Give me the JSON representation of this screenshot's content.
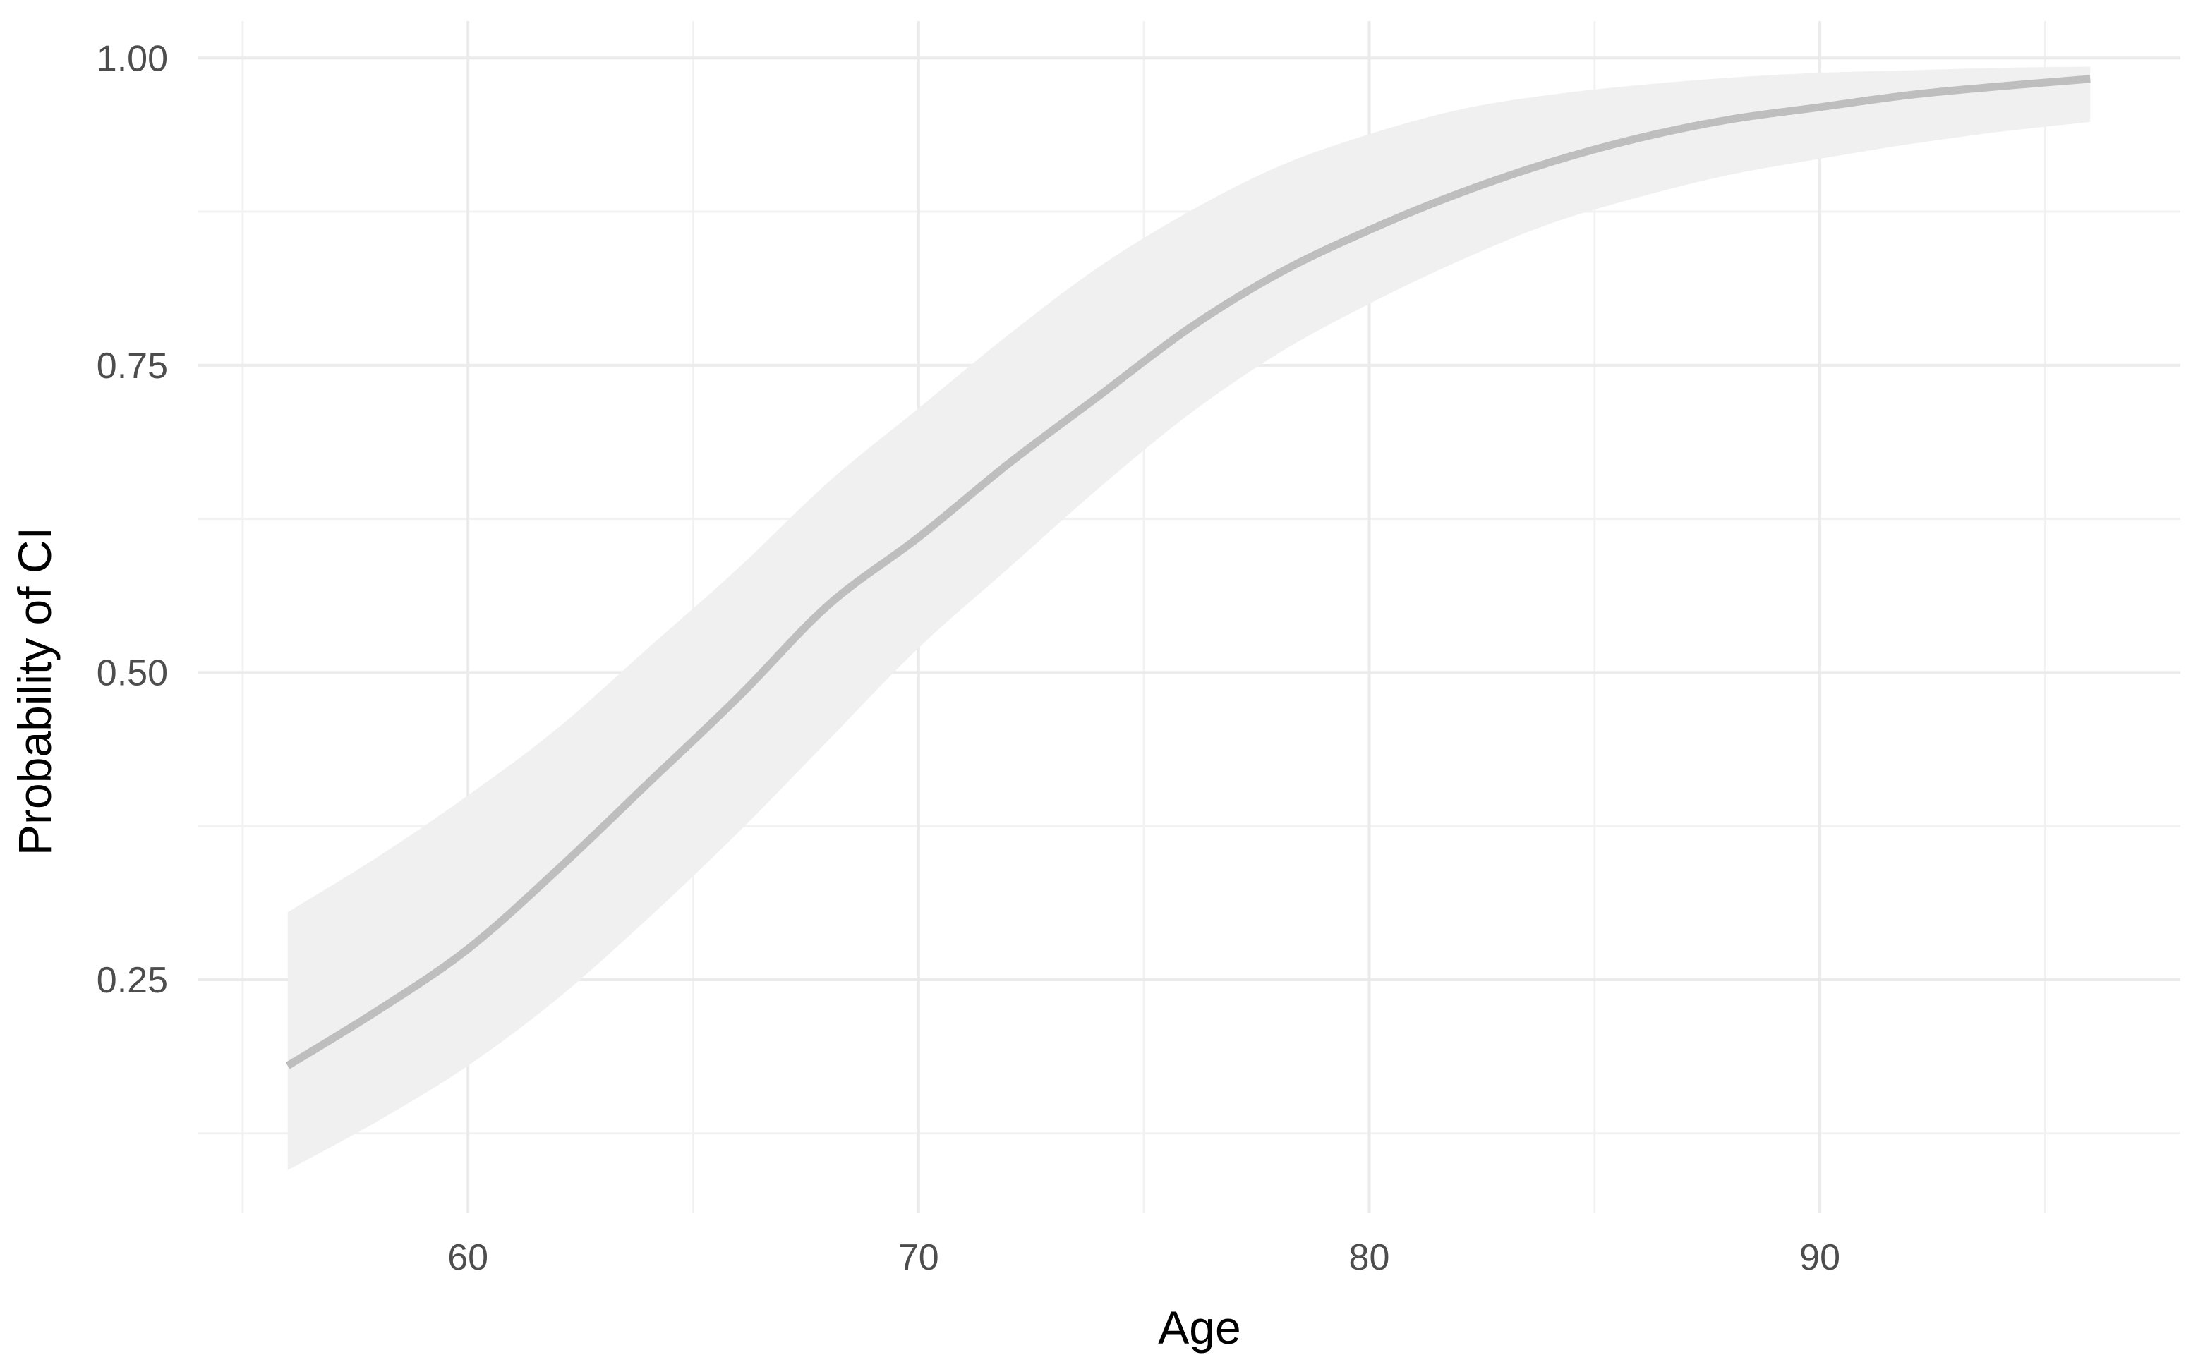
{
  "chart_data": {
    "type": "line",
    "title": "",
    "xlabel": "Age",
    "ylabel": "Probability of CI",
    "xlim": [
      54,
      98
    ],
    "ylim": [
      0.06,
      1.03
    ],
    "x_ticks": [
      60,
      70,
      80,
      90
    ],
    "x_tick_labels": [
      "60",
      "70",
      "80",
      "90"
    ],
    "y_ticks": [
      0.25,
      0.5,
      0.75,
      1.0
    ],
    "y_tick_labels": [
      "0.25",
      "0.50",
      "0.75",
      "1.00"
    ],
    "grid": true,
    "legend": "none",
    "series": [
      {
        "x": [
          56,
          58,
          60,
          62,
          64,
          66,
          68,
          70,
          72,
          74,
          76,
          78,
          80,
          82,
          84,
          86,
          88,
          90,
          92,
          94,
          96
        ],
        "y": [
          0.18,
          0.225,
          0.275,
          0.34,
          0.41,
          0.48,
          0.555,
          0.61,
          0.67,
          0.725,
          0.78,
          0.825,
          0.86,
          0.89,
          0.915,
          0.935,
          0.95,
          0.96,
          0.97,
          0.977,
          0.983
        ],
        "lower": [
          0.095,
          0.135,
          0.18,
          0.235,
          0.3,
          0.37,
          0.445,
          0.52,
          0.585,
          0.65,
          0.71,
          0.76,
          0.8,
          0.835,
          0.865,
          0.887,
          0.905,
          0.918,
          0.93,
          0.94,
          0.948
        ],
        "upper": [
          0.305,
          0.35,
          0.4,
          0.455,
          0.52,
          0.585,
          0.655,
          0.715,
          0.775,
          0.83,
          0.875,
          0.912,
          0.938,
          0.958,
          0.97,
          0.978,
          0.984,
          0.988,
          0.99,
          0.992,
          0.993
        ]
      }
    ],
    "colors": {
      "line": "#bebebe",
      "ribbon": "#f0f0f0",
      "grid_major": "#ebebeb",
      "grid_minor": "#f2f2f2",
      "tick_text": "#4d4d4d",
      "axis_title": "#000000"
    }
  }
}
